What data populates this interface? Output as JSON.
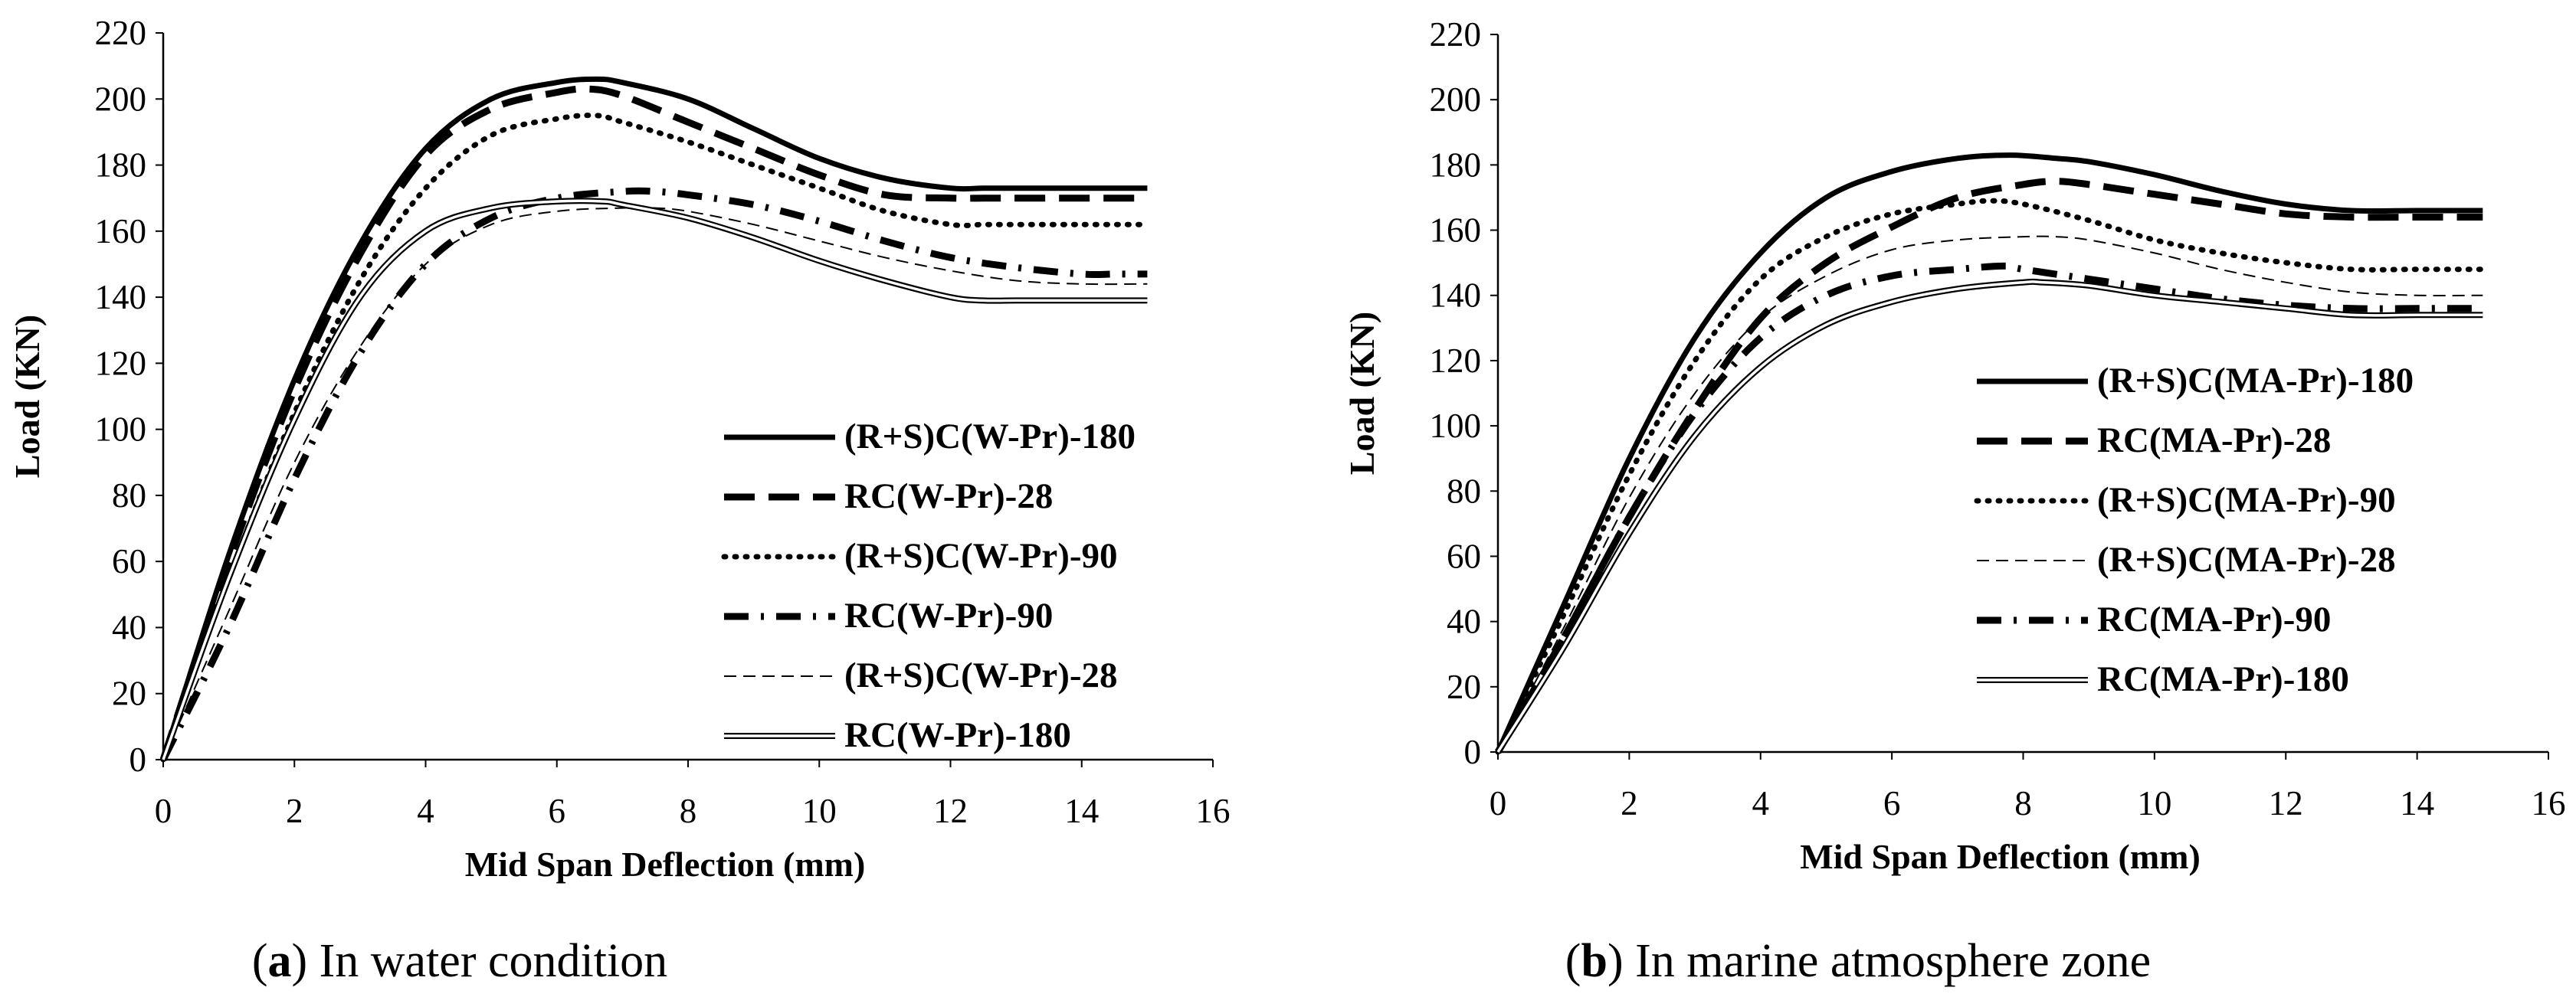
{
  "figures": [
    {
      "caption_letter": "a",
      "caption_text": "In water condition"
    },
    {
      "caption_letter": "b",
      "caption_text": "In marine atmosphere zone"
    }
  ],
  "chart_data": [
    {
      "type": "line",
      "title": "",
      "xlabel": "Mid Span Deflection (mm)",
      "ylabel": "Load (KN)",
      "xlim": [
        0,
        16
      ],
      "ylim": [
        0,
        220
      ],
      "xticks": [
        0,
        2,
        4,
        6,
        8,
        10,
        12,
        14,
        16
      ],
      "yticks": [
        0,
        20,
        40,
        60,
        80,
        100,
        120,
        140,
        160,
        180,
        200,
        220
      ],
      "grid": false,
      "legend_position": "lower-right",
      "series": [
        {
          "name": "(R+S)C(W-Pr)-180",
          "style": "solid",
          "x": [
            0,
            1,
            2,
            3,
            4,
            5,
            6,
            6.6,
            7,
            8,
            9,
            10,
            11,
            12,
            12.5,
            13,
            14,
            15
          ],
          "values": [
            0,
            62,
            115,
            156,
            185,
            200,
            205,
            206,
            205,
            200,
            191,
            182,
            176,
            173,
            173,
            173,
            173,
            173
          ]
        },
        {
          "name": "RC(W-Pr)-28",
          "style": "dash",
          "x": [
            0,
            1,
            2,
            3,
            4,
            5,
            6,
            6.5,
            7,
            8,
            9,
            10,
            11,
            12,
            12.5,
            13,
            14,
            15
          ],
          "values": [
            0,
            60,
            112,
            153,
            183,
            197,
            202,
            203,
            201,
            193,
            185,
            177,
            171,
            170,
            170,
            170,
            170,
            170
          ]
        },
        {
          "name": "(R+S)C(W-Pr)-90",
          "style": "dot",
          "x": [
            0,
            1,
            2,
            3,
            4,
            5,
            6,
            6.6,
            7,
            8,
            9,
            10,
            11,
            12,
            12.5,
            13,
            14,
            15
          ],
          "values": [
            0,
            55,
            105,
            145,
            173,
            189,
            194,
            195,
            193,
            187,
            180,
            173,
            166,
            162,
            162,
            162,
            162,
            162
          ]
        },
        {
          "name": "RC(W-Pr)-90",
          "style": "dashdot",
          "x": [
            0,
            1,
            2,
            3,
            4,
            5,
            6,
            7,
            7.5,
            8,
            9,
            10,
            11,
            12,
            13,
            14,
            14.5,
            15
          ],
          "values": [
            0,
            40,
            85,
            123,
            150,
            164,
            170,
            172,
            172,
            171,
            168,
            163,
            157,
            152,
            149,
            147,
            147,
            147
          ]
        },
        {
          "name": "(R+S)C(W-Pr)-28",
          "style": "thindash",
          "x": [
            0,
            1,
            2,
            3,
            4,
            5,
            6,
            7,
            7.5,
            8,
            9,
            10,
            11,
            12,
            13,
            14,
            15
          ],
          "values": [
            0,
            45,
            90,
            125,
            150,
            162,
            166,
            167,
            167,
            166,
            162,
            157,
            152,
            148,
            145,
            144,
            144
          ]
        },
        {
          "name": "RC(W-Pr)-180",
          "style": "double",
          "x": [
            0,
            1,
            2,
            3,
            4,
            5,
            6,
            6.7,
            7,
            8,
            9,
            10,
            11,
            12,
            12.5,
            13,
            14,
            15
          ],
          "values": [
            0,
            55,
            103,
            140,
            160,
            167,
            169,
            169,
            168,
            164,
            158,
            151,
            145,
            140,
            139,
            139,
            139,
            139
          ]
        }
      ]
    },
    {
      "type": "line",
      "title": "",
      "xlabel": "Mid Span Deflection (mm)",
      "ylabel": "Load (KN)",
      "xlim": [
        0,
        16
      ],
      "ylim": [
        0,
        220
      ],
      "xticks": [
        0,
        2,
        4,
        6,
        8,
        10,
        12,
        14,
        16
      ],
      "yticks": [
        0,
        20,
        40,
        60,
        80,
        100,
        120,
        140,
        160,
        180,
        200,
        220
      ],
      "grid": false,
      "legend_position": "lower-right",
      "series": [
        {
          "name": "(R+S)C(MA-Pr)-180",
          "style": "solid",
          "x": [
            0,
            1,
            2,
            3,
            4,
            5,
            6,
            7,
            7.8,
            8.5,
            9,
            10,
            11,
            12,
            13,
            14,
            15
          ],
          "values": [
            0,
            45,
            90,
            127,
            153,
            170,
            178,
            182,
            183,
            182,
            181,
            177,
            172,
            168,
            166,
            166,
            166
          ]
        },
        {
          "name": "RC(MA-Pr)-28",
          "style": "dash",
          "x": [
            0,
            1,
            2,
            3,
            4,
            5,
            6,
            7,
            8,
            8.5,
            9,
            10,
            11,
            12,
            13,
            14,
            15
          ],
          "values": [
            0,
            35,
            72,
            105,
            133,
            150,
            161,
            170,
            174,
            175,
            174,
            171,
            168,
            165,
            164,
            164,
            164
          ]
        },
        {
          "name": "(R+S)C(MA-Pr)-90",
          "style": "dot",
          "x": [
            0,
            1,
            2,
            3,
            4,
            5,
            6,
            7,
            7.5,
            8,
            9,
            10,
            11,
            12,
            13,
            14,
            15
          ],
          "values": [
            0,
            42,
            85,
            120,
            145,
            158,
            165,
            168,
            169,
            168,
            163,
            157,
            153,
            150,
            148,
            148,
            148
          ]
        },
        {
          "name": "(R+S)C(MA-Pr)-28",
          "style": "thindash",
          "x": [
            0,
            1,
            2,
            3,
            4,
            5,
            6,
            7,
            8,
            8.5,
            9,
            10,
            11,
            12,
            13,
            14,
            15
          ],
          "values": [
            0,
            38,
            78,
            110,
            133,
            146,
            154,
            157,
            158,
            158,
            157,
            153,
            148,
            144,
            141,
            140,
            140
          ]
        },
        {
          "name": "RC(MA-Pr)-90",
          "style": "dashdot",
          "x": [
            0,
            1,
            2,
            3,
            4,
            5,
            6,
            7,
            7.7,
            8,
            9,
            10,
            11,
            12,
            13,
            14,
            15
          ],
          "values": [
            0,
            35,
            72,
            104,
            127,
            140,
            146,
            148,
            149,
            148,
            145,
            142,
            139,
            137,
            136,
            136,
            136
          ]
        },
        {
          "name": "RC(MA-Pr)-180",
          "style": "double",
          "x": [
            0,
            1,
            2,
            3,
            4,
            5,
            6,
            7,
            8,
            8.3,
            9,
            10,
            11,
            12,
            13,
            14,
            15
          ],
          "values": [
            0,
            32,
            67,
            97,
            118,
            131,
            138,
            142,
            144,
            144,
            143,
            140,
            138,
            136,
            134,
            134,
            134
          ]
        }
      ]
    }
  ]
}
